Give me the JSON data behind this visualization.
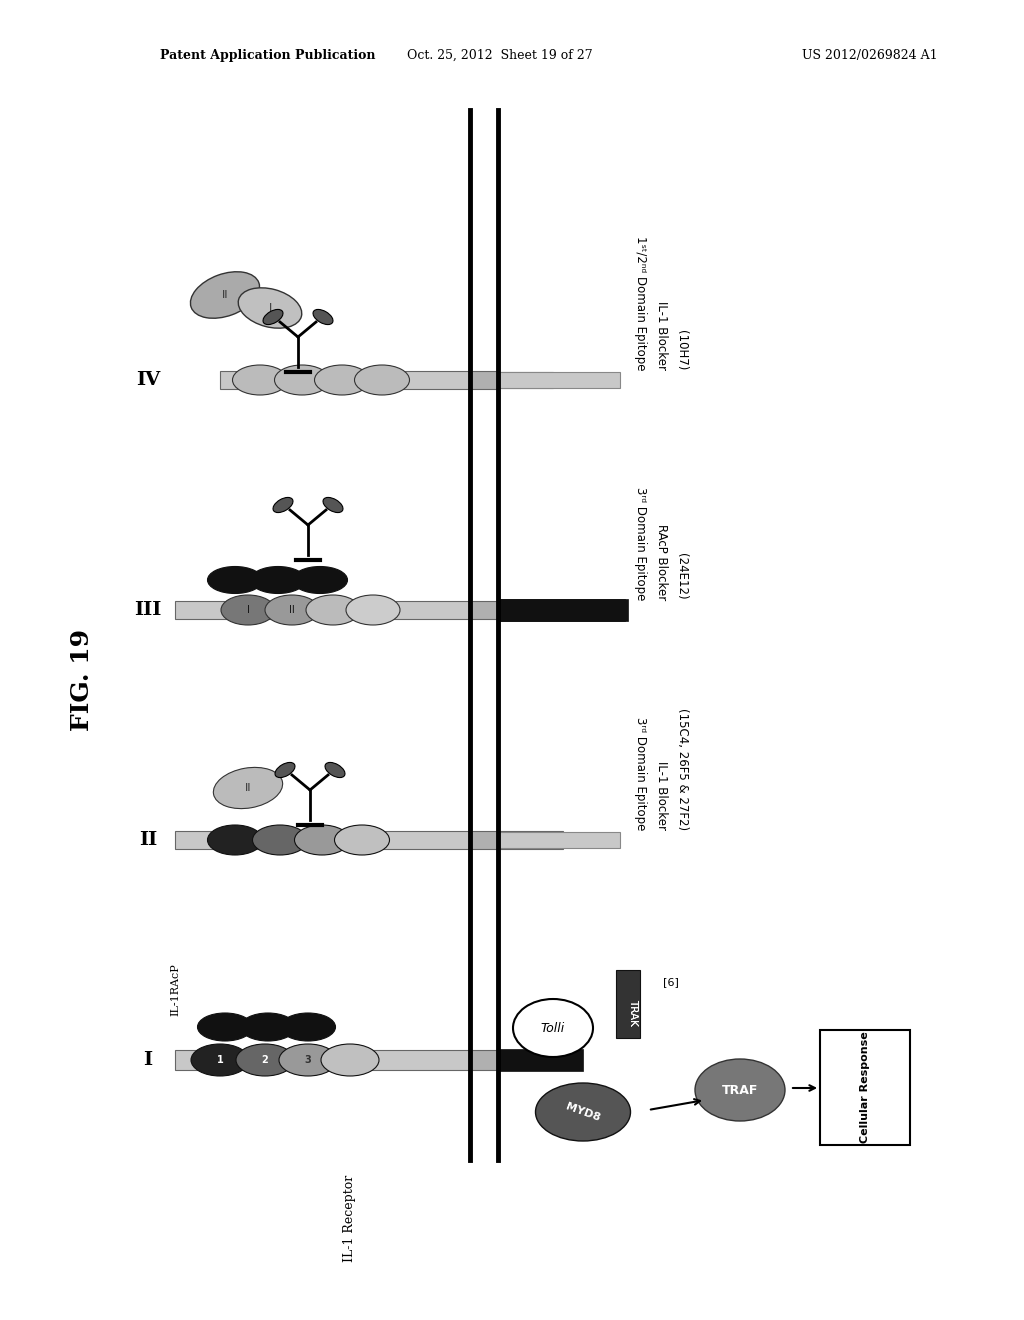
{
  "background_color": "#ffffff",
  "header_left": "Patent Application Publication",
  "header_mid": "Oct. 25, 2012  Sheet 19 of 27",
  "header_right": "US 2012/0269824 A1",
  "fig_label": "FIG. 19",
  "panel_labels": [
    "I",
    "II",
    "III",
    "IV"
  ],
  "right_labels": [
    [
      "1ˢᵗ/2ⁿᵈ Domain Epitope",
      "IL-1 Blocker",
      "(10H7)"
    ],
    [
      "3ʳᵈ Domain Epitope",
      "RAcP Blocker",
      "(24E12)"
    ],
    [
      "3ʳᵈ Domain Epitope",
      "IL-1 Blocker",
      "(15C4, 26F5 & 27F2)"
    ]
  ]
}
